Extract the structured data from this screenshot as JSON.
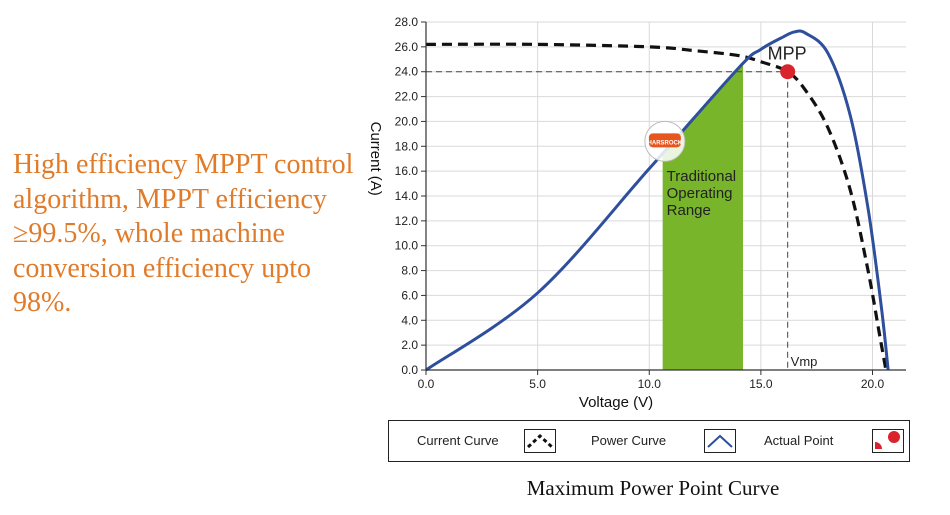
{
  "description": "High efficiency MPPT control algorithm, MPPT efficiency ≥99.5%, whole machine conversion efficiency upto 98%.",
  "caption": "Maximum Power Point Curve",
  "colors": {
    "description_text": "#e07b2a",
    "power_curve": "#2e4f9c",
    "current_curve": "#111111",
    "operating_range": "#78b52b",
    "actual_point": "#d9232d"
  },
  "chart_data": {
    "type": "line",
    "xlabel": "Voltage (V)",
    "ylabel": "Current (A)",
    "xlim": [
      0,
      21.5
    ],
    "ylim": [
      0,
      28
    ],
    "x_ticks": [
      "0.0",
      "5.0",
      "10.0",
      "15.0",
      "20.0"
    ],
    "y_ticks": [
      "0.0",
      "2.0",
      "4.0",
      "6.0",
      "8.0",
      "10.0",
      "12.0",
      "14.0",
      "16.0",
      "18.0",
      "20.0",
      "22.0",
      "24.0",
      "26.0",
      "28.0"
    ],
    "grid": true,
    "series": [
      {
        "name": "Current Curve",
        "style": "dashed",
        "points": [
          [
            0,
            26.2
          ],
          [
            5,
            26.2
          ],
          [
            10,
            26.0
          ],
          [
            12,
            25.7
          ],
          [
            14,
            25.3
          ],
          [
            15,
            24.8
          ],
          [
            16.2,
            24.0
          ],
          [
            17,
            22.5
          ],
          [
            18,
            19.5
          ],
          [
            19,
            14.5
          ],
          [
            19.8,
            8
          ],
          [
            20.3,
            3
          ],
          [
            20.6,
            0
          ]
        ]
      },
      {
        "name": "Power Curve",
        "style": "solid",
        "points": [
          [
            0,
            0
          ],
          [
            5,
            6.2
          ],
          [
            10,
            16.2
          ],
          [
            14,
            24.3
          ],
          [
            15,
            25.8
          ],
          [
            16,
            26.8
          ],
          [
            16.5,
            27.2
          ],
          [
            17,
            27.1
          ],
          [
            18,
            25.5
          ],
          [
            19,
            20.5
          ],
          [
            19.8,
            13
          ],
          [
            20.4,
            5
          ],
          [
            20.7,
            0
          ]
        ]
      }
    ],
    "operating_range": {
      "label": "Traditional Operating Range",
      "x_start": 10.6,
      "x_end": 14.2
    },
    "mpp": {
      "label": "MPP",
      "x": 16.2,
      "y": 24.0,
      "vline_label": "Vmp"
    },
    "legend": {
      "position": "bottom",
      "items": [
        {
          "label": "Current Curve",
          "icon": "dashed-peak-icon"
        },
        {
          "label": "Power Curve",
          "icon": "solid-peak-icon"
        },
        {
          "label": "Actual Point",
          "icon": "red-dot-icon"
        }
      ]
    },
    "watermark": "HARSROCK"
  }
}
